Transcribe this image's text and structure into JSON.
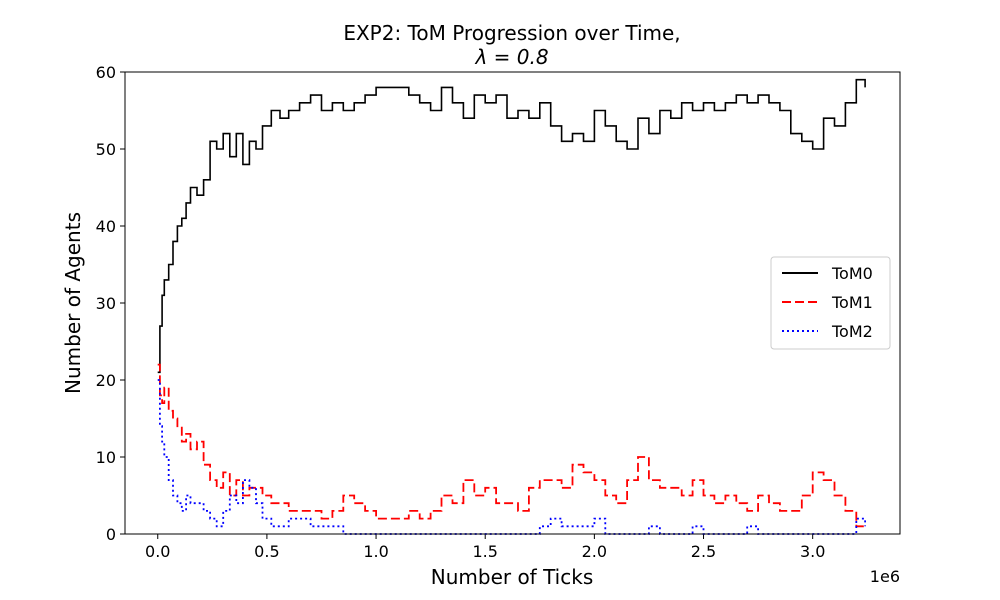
{
  "chart_data": {
    "type": "line",
    "title_line1": "EXP2: ToM Progression over Time,",
    "title_line2": "λ = 0.8",
    "xlabel": "Number of Ticks",
    "ylabel": "Number of Agents",
    "x_offset_label": "1e6",
    "xlim": [
      -0.15,
      3.4
    ],
    "ylim": [
      0,
      60
    ],
    "x_ticks": [
      0.0,
      0.5,
      1.0,
      1.5,
      2.0,
      2.5,
      3.0
    ],
    "x_tick_labels": [
      "0.0",
      "0.5",
      "1.0",
      "1.5",
      "2.0",
      "2.5",
      "3.0"
    ],
    "y_ticks": [
      0,
      10,
      20,
      30,
      40,
      50,
      60
    ],
    "y_tick_labels": [
      "0",
      "10",
      "20",
      "30",
      "40",
      "50",
      "60"
    ],
    "grid": false,
    "legend_position": "center-right",
    "series": [
      {
        "name": "ToM0",
        "color": "#000000",
        "style": "solid",
        "x": [
          0.0,
          0.01,
          0.02,
          0.03,
          0.05,
          0.07,
          0.09,
          0.11,
          0.13,
          0.15,
          0.18,
          0.21,
          0.24,
          0.27,
          0.3,
          0.33,
          0.36,
          0.39,
          0.42,
          0.45,
          0.48,
          0.52,
          0.56,
          0.6,
          0.65,
          0.7,
          0.75,
          0.8,
          0.85,
          0.9,
          0.95,
          1.0,
          1.05,
          1.1,
          1.15,
          1.2,
          1.25,
          1.3,
          1.35,
          1.4,
          1.45,
          1.5,
          1.55,
          1.6,
          1.65,
          1.7,
          1.75,
          1.8,
          1.85,
          1.9,
          1.95,
          2.0,
          2.05,
          2.1,
          2.15,
          2.2,
          2.25,
          2.3,
          2.35,
          2.4,
          2.45,
          2.5,
          2.55,
          2.6,
          2.65,
          2.7,
          2.75,
          2.8,
          2.85,
          2.9,
          2.95,
          3.0,
          3.05,
          3.1,
          3.15,
          3.2,
          3.24
        ],
        "values": [
          21,
          27,
          31,
          33,
          35,
          38,
          40,
          41,
          43,
          45,
          44,
          46,
          51,
          50,
          52,
          49,
          52,
          48,
          51,
          50,
          53,
          55,
          54,
          55,
          56,
          57,
          55,
          56,
          55,
          56,
          57,
          58,
          58,
          58,
          57,
          56,
          55,
          58,
          56,
          54,
          57,
          56,
          57,
          54,
          55,
          54,
          56,
          53,
          51,
          52,
          51,
          55,
          53,
          51,
          50,
          54,
          52,
          55,
          54,
          56,
          55,
          56,
          55,
          56,
          57,
          56,
          57,
          56,
          55,
          52,
          51,
          50,
          54,
          53,
          56,
          59,
          58
        ]
      },
      {
        "name": "ToM1",
        "color": "#ff0000",
        "style": "dashed",
        "x": [
          0.0,
          0.01,
          0.02,
          0.03,
          0.05,
          0.07,
          0.09,
          0.11,
          0.13,
          0.15,
          0.18,
          0.21,
          0.24,
          0.27,
          0.3,
          0.33,
          0.36,
          0.39,
          0.42,
          0.45,
          0.48,
          0.52,
          0.56,
          0.6,
          0.65,
          0.7,
          0.75,
          0.8,
          0.85,
          0.9,
          0.95,
          1.0,
          1.05,
          1.1,
          1.15,
          1.2,
          1.25,
          1.3,
          1.35,
          1.4,
          1.45,
          1.5,
          1.55,
          1.6,
          1.65,
          1.7,
          1.75,
          1.8,
          1.85,
          1.9,
          1.95,
          2.0,
          2.05,
          2.1,
          2.15,
          2.2,
          2.25,
          2.3,
          2.35,
          2.4,
          2.45,
          2.5,
          2.55,
          2.6,
          2.65,
          2.7,
          2.75,
          2.8,
          2.85,
          2.9,
          2.95,
          3.0,
          3.05,
          3.1,
          3.15,
          3.2,
          3.24
        ],
        "values": [
          22,
          18,
          17,
          19,
          16,
          15,
          14,
          12,
          13,
          11,
          12,
          9,
          7,
          6,
          8,
          5,
          7,
          5,
          6,
          6,
          5,
          4,
          4,
          3,
          3,
          3,
          2,
          3,
          5,
          4,
          3,
          2,
          2,
          2,
          3,
          2,
          3,
          5,
          4,
          7,
          5,
          6,
          4,
          4,
          3,
          6,
          7,
          7,
          6,
          9,
          8,
          7,
          5,
          4,
          7,
          10,
          7,
          6,
          6,
          5,
          7,
          5,
          4,
          5,
          4,
          3,
          5,
          4,
          3,
          3,
          5,
          8,
          7,
          5,
          3,
          1,
          1
        ]
      },
      {
        "name": "ToM2",
        "color": "#0000ff",
        "style": "dotted",
        "x": [
          0.0,
          0.01,
          0.02,
          0.03,
          0.05,
          0.07,
          0.09,
          0.11,
          0.13,
          0.15,
          0.18,
          0.21,
          0.24,
          0.27,
          0.3,
          0.33,
          0.36,
          0.39,
          0.42,
          0.45,
          0.48,
          0.52,
          0.56,
          0.6,
          0.65,
          0.7,
          0.75,
          0.8,
          0.85,
          0.9,
          0.95,
          1.0,
          1.05,
          1.1,
          1.15,
          1.2,
          1.25,
          1.3,
          1.35,
          1.4,
          1.45,
          1.5,
          1.55,
          1.6,
          1.65,
          1.7,
          1.75,
          1.8,
          1.85,
          1.9,
          1.95,
          2.0,
          2.05,
          2.1,
          2.15,
          2.2,
          2.25,
          2.3,
          2.35,
          2.4,
          2.45,
          2.5,
          2.55,
          2.6,
          2.65,
          2.7,
          2.75,
          2.8,
          2.85,
          2.9,
          2.95,
          3.0,
          3.05,
          3.1,
          3.15,
          3.2,
          3.24
        ],
        "values": [
          20,
          14,
          12,
          10,
          7,
          5,
          4,
          3,
          5,
          4,
          4,
          3,
          2,
          1,
          3,
          5,
          4,
          7,
          6,
          4,
          2,
          1,
          1,
          2,
          2,
          1,
          1,
          1,
          0,
          0,
          0,
          0,
          0,
          0,
          0,
          0,
          0,
          0,
          0,
          0,
          0,
          0,
          0,
          0,
          0,
          0,
          1,
          2,
          1,
          1,
          1,
          2,
          0,
          0,
          0,
          0,
          1,
          0,
          0,
          0,
          1,
          0,
          0,
          0,
          0,
          1,
          0,
          0,
          0,
          0,
          0,
          0,
          0,
          0,
          0,
          2,
          1
        ]
      }
    ]
  }
}
